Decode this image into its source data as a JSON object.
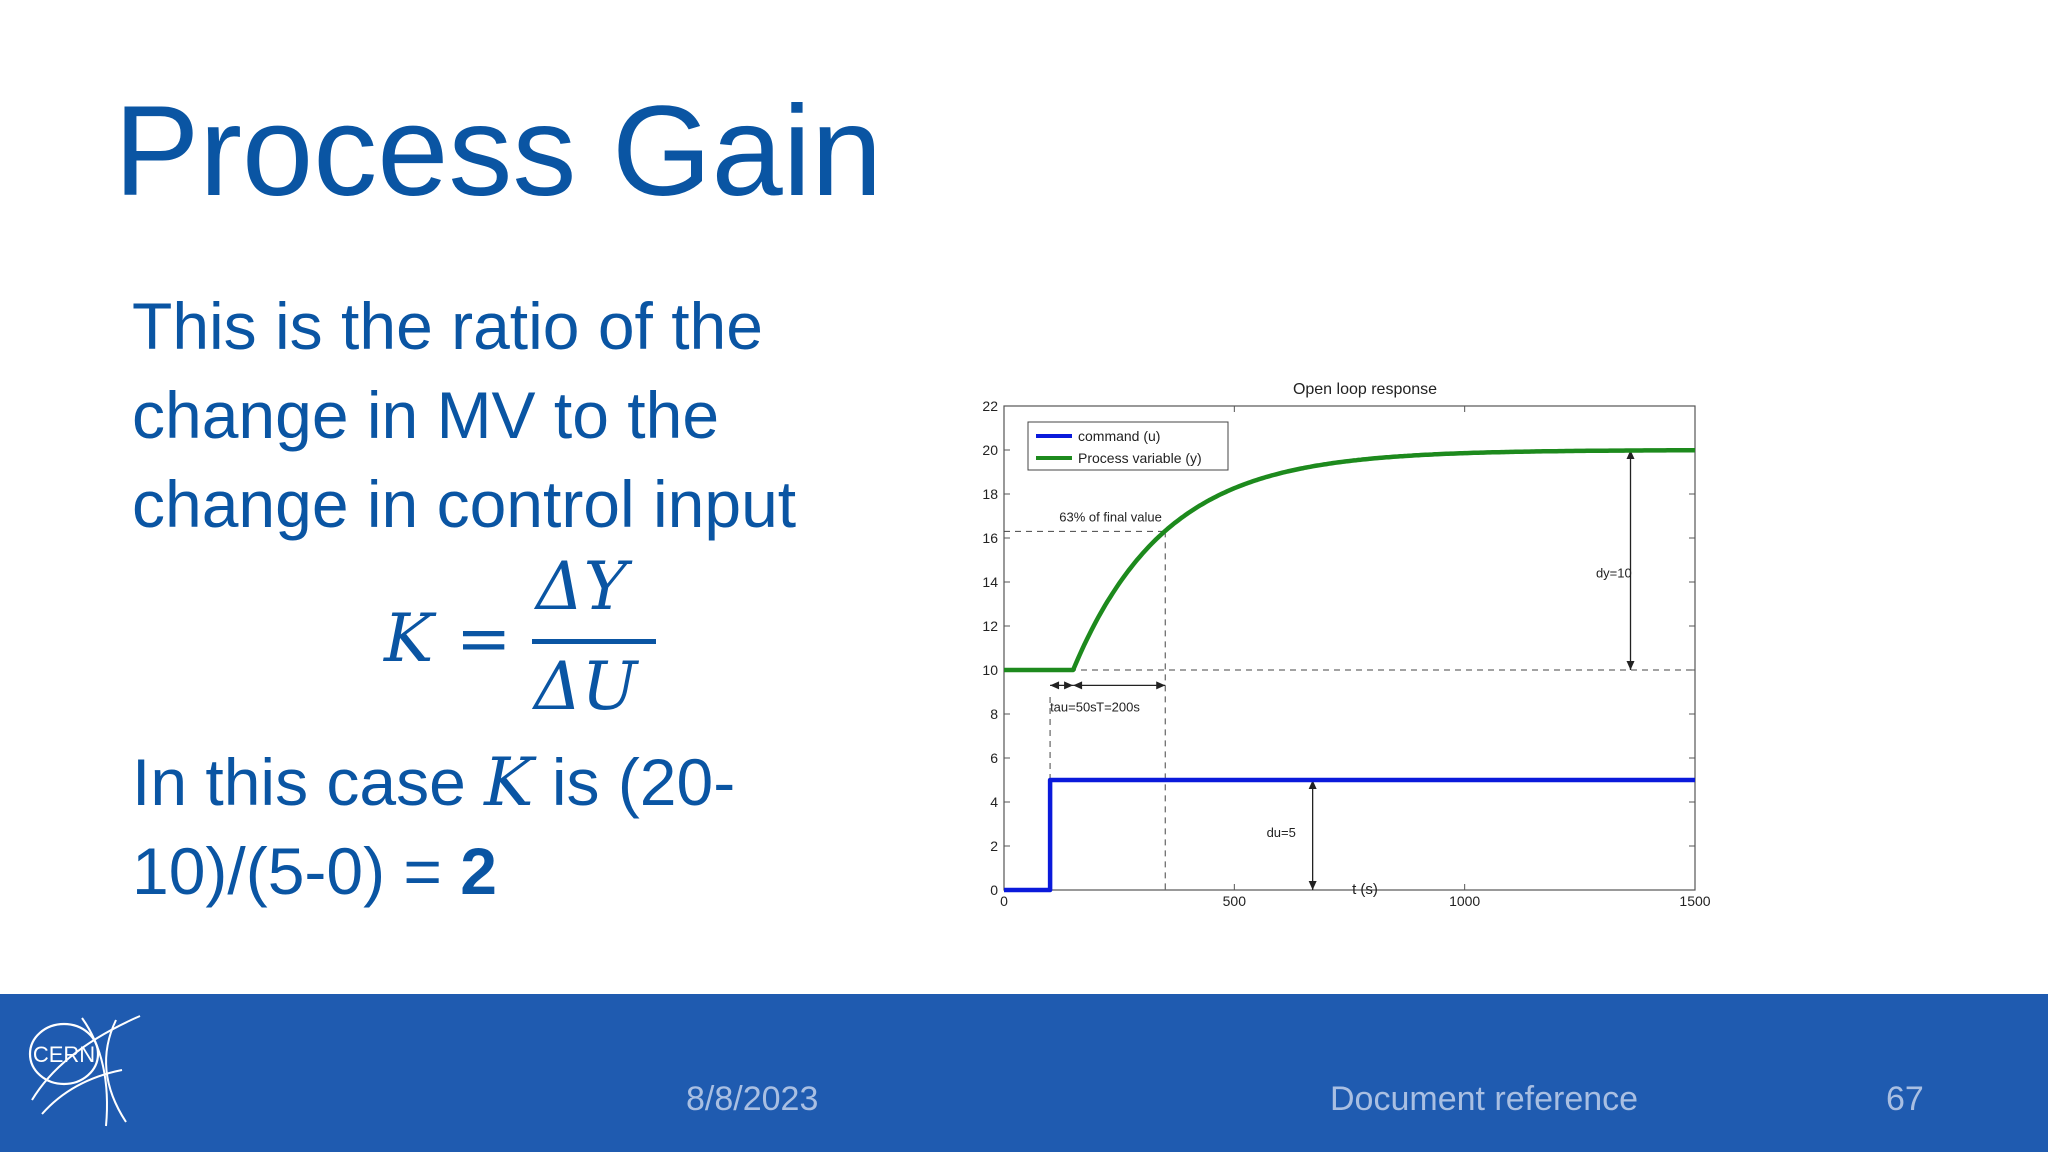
{
  "slide": {
    "title": "Process Gain",
    "body_lines": [
      "This is the ratio of the",
      "change in MV to the",
      "change in control input"
    ],
    "formula": {
      "lhs": "K",
      "eq": "=",
      "numerator": "ΔY",
      "denominator": "ΔU"
    },
    "case_line1_pre": "In this case ",
    "case_k": "K",
    "case_line1_post": " is (20-",
    "case_line2_pre": "10)/(5-0) = ",
    "case_result": "2"
  },
  "footer": {
    "logo_text": "CERN",
    "date": "8/8/2023",
    "doc_ref": "Document reference",
    "page": "67"
  },
  "colors": {
    "title": "#0a55a3",
    "footer_bg": "#1f5bb0",
    "command": "#0a1adb",
    "process": "#1d8a1d"
  },
  "chart_data": {
    "type": "line",
    "title": "Open loop response",
    "xlabel": "t (s)",
    "ylabel": "",
    "xlim": [
      0,
      1500
    ],
    "ylim": [
      0,
      22
    ],
    "xticks": [
      0,
      500,
      1000,
      1500
    ],
    "yticks": [
      0,
      2,
      4,
      6,
      8,
      10,
      12,
      14,
      16,
      18,
      20,
      22
    ],
    "grid": false,
    "legend_position": "top-left",
    "series": [
      {
        "name": "command (u)",
        "color": "#0a1adb",
        "x": [
          0,
          100,
          100,
          1500
        ],
        "y": [
          0,
          0,
          5,
          5
        ]
      },
      {
        "name": "Process variable (y)",
        "color": "#1d8a1d",
        "x": [
          0,
          150,
          200,
          250,
          300,
          350,
          400,
          500,
          600,
          700,
          800,
          900,
          1000,
          1100,
          1200,
          1300,
          1400,
          1500
        ],
        "y": [
          10,
          10,
          12.2,
          14.0,
          15.3,
          16.3,
          17.1,
          18.2,
          18.9,
          19.3,
          19.6,
          19.75,
          19.85,
          19.9,
          19.94,
          19.96,
          19.98,
          20
        ]
      }
    ],
    "annotations": {
      "final_value_label": "63% of final value",
      "tau_label": "tau=50s",
      "T_label": "T=200s",
      "dy_label": "dy=10",
      "du_label": "du=5"
    }
  }
}
